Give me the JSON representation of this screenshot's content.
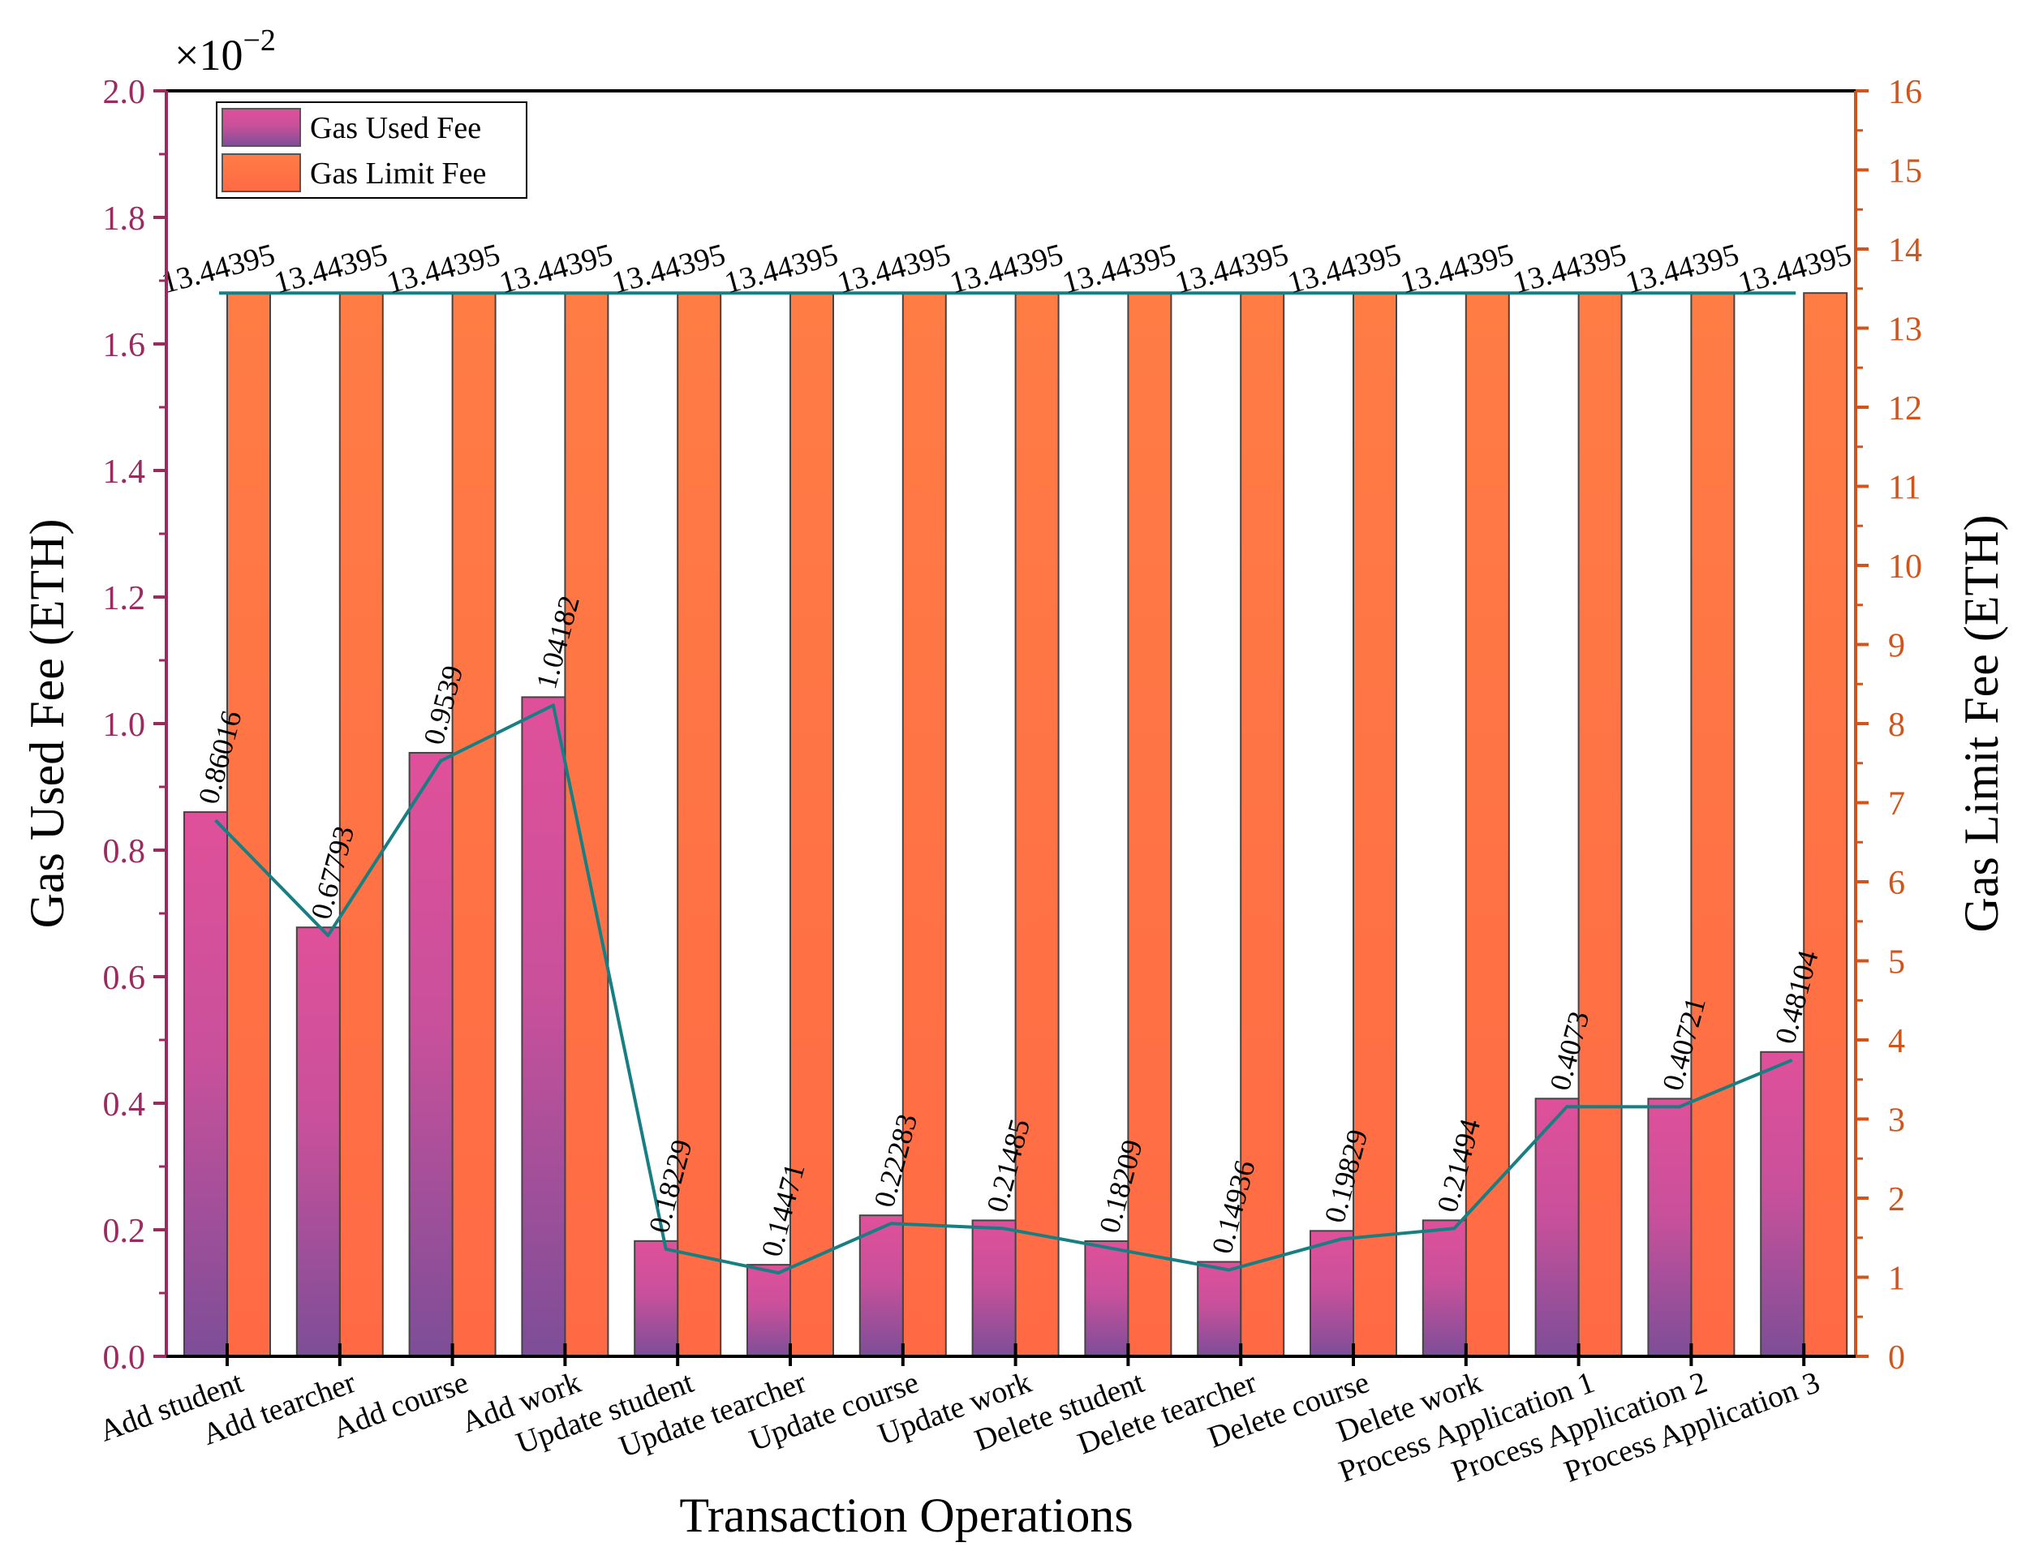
{
  "chart_data": {
    "type": "bar",
    "xlabel": "Transaction Operations",
    "ylabel_left": "Gas Used Fee (ETH)",
    "ylabel_right": "Gas Limit Fee (ETH)",
    "left_axis_multiplier": "×10",
    "left_axis_multiplier_exp": "−2",
    "ylim_left": [
      0,
      2.0
    ],
    "ylim_right": [
      0,
      16
    ],
    "yticks_left": [
      "0.0",
      "0.2",
      "0.4",
      "0.6",
      "0.8",
      "1.0",
      "1.2",
      "1.4",
      "1.6",
      "1.8",
      "2.0"
    ],
    "yticks_right": [
      "0",
      "1",
      "2",
      "3",
      "4",
      "5",
      "6",
      "7",
      "8",
      "9",
      "10",
      "11",
      "12",
      "13",
      "14",
      "15",
      "16"
    ],
    "categories": [
      "Add student",
      "Add tearcher",
      "Add course",
      "Add work",
      "Update student",
      "Update tearcher",
      "Update course",
      "Update work",
      "Delete student",
      "Delete tearcher",
      "Delete course",
      "Delete work",
      "Process Application 1",
      "Process Application 2",
      "Process Application 3"
    ],
    "series": [
      {
        "name": "Gas Used Fee",
        "axis": "left",
        "values": [
          0.86016,
          0.67793,
          0.9539,
          1.04182,
          0.18229,
          0.14471,
          0.22283,
          0.21485,
          0.18209,
          0.14936,
          0.19829,
          0.21494,
          0.4073,
          0.40721,
          0.48104
        ],
        "labels": [
          "0.86016",
          "0.67793",
          "0.9539",
          "1.04182",
          "0.18229",
          "0.14471",
          "0.22283",
          "0.21485",
          "0.18209",
          "0.14936",
          "0.19829",
          "0.21494",
          "0.4073",
          "0.40721",
          "0.48104"
        ]
      },
      {
        "name": "Gas Limit Fee",
        "axis": "right",
        "values": [
          13.44395,
          13.44395,
          13.44395,
          13.44395,
          13.44395,
          13.44395,
          13.44395,
          13.44395,
          13.44395,
          13.44395,
          13.44395,
          13.44395,
          13.44395,
          13.44395,
          13.44395
        ],
        "labels": [
          "13.44395",
          "13.44395",
          "13.44395",
          "13.44395",
          "13.44395",
          "13.44395",
          "13.44395",
          "13.44395",
          "13.44395",
          "13.44395",
          "13.44395",
          "13.44395",
          "13.44395",
          "13.44395",
          "13.44395"
        ]
      }
    ],
    "legend": [
      "Gas Used Fee",
      "Gas Limit Fee"
    ],
    "legend_position": "top-left",
    "colors": {
      "left_axis": "#9b2a5f",
      "right_axis": "#d2541a",
      "used_top": "#e0509a",
      "used_bottom": "#7d4e98",
      "limit": "#ff7b44",
      "trend_line": "#177f82"
    }
  }
}
